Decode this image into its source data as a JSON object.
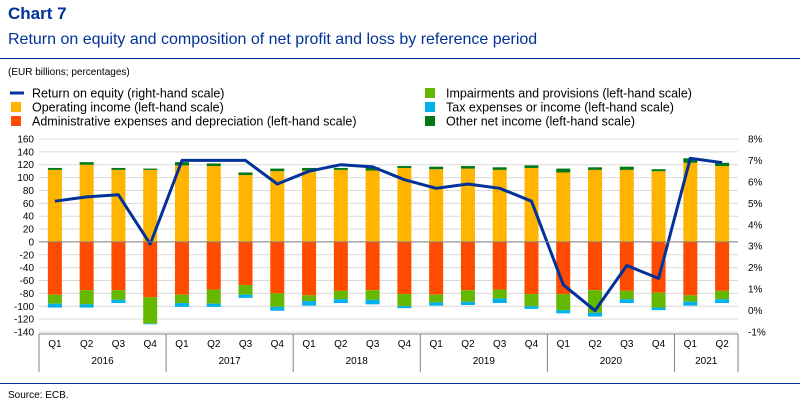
{
  "header": {
    "chart_number": "Chart 7",
    "title": "Return on equity and composition of net profit and loss by reference period",
    "units": "(EUR billions; percentages)"
  },
  "footer": {
    "source": "Source: ECB."
  },
  "colors": {
    "operating_income": "#FFB400",
    "admin_expenses": "#FF4B00",
    "impairments": "#65B800",
    "tax": "#00B1EA",
    "other_net_income": "#007816",
    "roe_line": "#003299",
    "gridline": "#D9D9D9",
    "axis": "#808080"
  },
  "chart_data": {
    "type": "bar",
    "stacked": true,
    "categories": [
      "Q1",
      "Q2",
      "Q3",
      "Q4",
      "Q1",
      "Q2",
      "Q3",
      "Q4",
      "Q1",
      "Q2",
      "Q3",
      "Q4",
      "Q1",
      "Q2",
      "Q3",
      "Q4",
      "Q1",
      "Q2",
      "Q3",
      "Q4",
      "Q1",
      "Q2"
    ],
    "years": [
      {
        "label": "2016",
        "quarters": 4
      },
      {
        "label": "2017",
        "quarters": 4
      },
      {
        "label": "2018",
        "quarters": 4
      },
      {
        "label": "2019",
        "quarters": 4
      },
      {
        "label": "2020",
        "quarters": 4
      },
      {
        "label": "2021",
        "quarters": 2
      }
    ],
    "y_left": {
      "min": -140,
      "max": 160,
      "step": 20
    },
    "y_left_ticks": [
      "160",
      "140",
      "120",
      "100",
      "80",
      "60",
      "40",
      "20",
      "0",
      "-20",
      "-40",
      "-60",
      "-80",
      "-100",
      "-120",
      "-140"
    ],
    "y_right": {
      "min": -1,
      "max": 8,
      "step": 1
    },
    "y_right_ticks": [
      "8%",
      "7%",
      "6%",
      "5%",
      "4%",
      "3%",
      "2%",
      "1%",
      "0%",
      "-1%"
    ],
    "grid": true,
    "legend_position": "top",
    "series": [
      {
        "name": "Operating income (left-hand scale)",
        "color_key": "operating_income",
        "axis": "left",
        "values": [
          112,
          120,
          112,
          112,
          119,
          118,
          104,
          110,
          111,
          112,
          111,
          115,
          113,
          114,
          112,
          115,
          108,
          112,
          112,
          110,
          123,
          118
        ]
      },
      {
        "name": "Other net income (left-hand scale)",
        "color_key": "other_net_income",
        "axis": "left",
        "values": [
          3,
          4,
          3,
          2,
          5,
          4,
          4,
          4,
          4,
          3,
          5,
          3,
          4,
          4,
          4,
          4,
          6,
          4,
          5,
          3,
          7,
          5
        ]
      },
      {
        "name": "Administrative expenses and depreciation (left-hand scale)",
        "color_key": "admin_expenses",
        "axis": "left",
        "values": [
          -82,
          -75,
          -75,
          -86,
          -82,
          -74,
          -67,
          -80,
          -83,
          -76,
          -75,
          -81,
          -82,
          -75,
          -74,
          -81,
          -81,
          -75,
          -76,
          -79,
          -83,
          -76
        ]
      },
      {
        "name": "Impairments and provisions (left-hand scale)",
        "color_key": "impairments",
        "axis": "left",
        "values": [
          -14,
          -22,
          -15,
          -41,
          -13,
          -22,
          -15,
          -21,
          -9,
          -13,
          -15,
          -19,
          -12,
          -18,
          -14,
          -19,
          -25,
          -35,
          -13,
          -23,
          -10,
          -13
        ]
      },
      {
        "name": "Tax expenses or income (left-hand scale)",
        "color_key": "tax",
        "axis": "left",
        "values": [
          -6,
          -5,
          -5,
          -1,
          -6,
          -5,
          -5,
          -6,
          -7,
          -6,
          -7,
          -3,
          -5,
          -5,
          -7,
          -4,
          -5,
          -6,
          -6,
          -4,
          -6,
          -6
        ]
      },
      {
        "name": "Return on equity (right-hand scale)",
        "color_key": "roe_line",
        "axis": "right",
        "type": "line",
        "values": [
          5.1,
          5.3,
          5.4,
          3.1,
          7.0,
          7.0,
          7.0,
          5.9,
          6.5,
          6.8,
          6.7,
          6.1,
          5.7,
          5.9,
          5.7,
          5.1,
          1.2,
          0.0,
          2.1,
          1.5,
          7.1,
          6.9
        ]
      }
    ],
    "legend_order": [
      "Return on equity (right-hand scale)",
      "Operating income (left-hand scale)",
      "Administrative expenses and depreciation (left-hand scale)",
      "Impairments and provisions (left-hand scale)",
      "Tax expenses or income (left-hand scale)",
      "Other net income (left-hand scale)"
    ]
  }
}
